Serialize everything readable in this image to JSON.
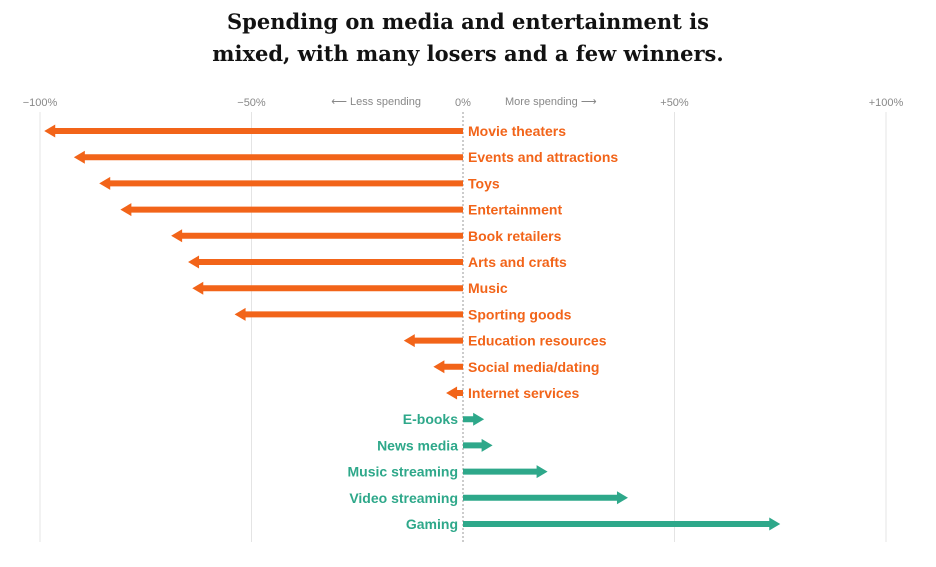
{
  "chart_data": {
    "type": "bar",
    "orientation": "horizontal-arrows",
    "title_lines": [
      "Spending on media and entertainment is",
      "mixed, with many losers and a few winners."
    ],
    "xlim": [
      -100,
      100
    ],
    "xticks": [
      {
        "value": -100,
        "label": "−100%"
      },
      {
        "value": -50,
        "label": "−50%"
      },
      {
        "value": 0,
        "label": "0%"
      },
      {
        "value": 50,
        "label": "+50%"
      },
      {
        "value": 100,
        "label": "+100%"
      }
    ],
    "direction_labels": {
      "negative": "⟵ Less spending",
      "positive": "More spending ⟶"
    },
    "colors": {
      "negative": "#f26419",
      "positive": "#2ea88a",
      "gridline": "#e4e4e4",
      "zero_line": "#999999",
      "tick_text": "#888888"
    },
    "categories": [
      "Movie theaters",
      "Events and attractions",
      "Toys",
      "Entertainment",
      "Book retailers",
      "Arts and crafts",
      "Music",
      "Sporting goods",
      "Education resources",
      "Social media/dating",
      "Internet services",
      "E-books",
      "News media",
      "Music streaming",
      "Video streaming",
      "Gaming"
    ],
    "values": [
      -99,
      -92,
      -86,
      -81,
      -69,
      -65,
      -64,
      -54,
      -14,
      -7,
      -4,
      5,
      7,
      20,
      39,
      75
    ]
  }
}
